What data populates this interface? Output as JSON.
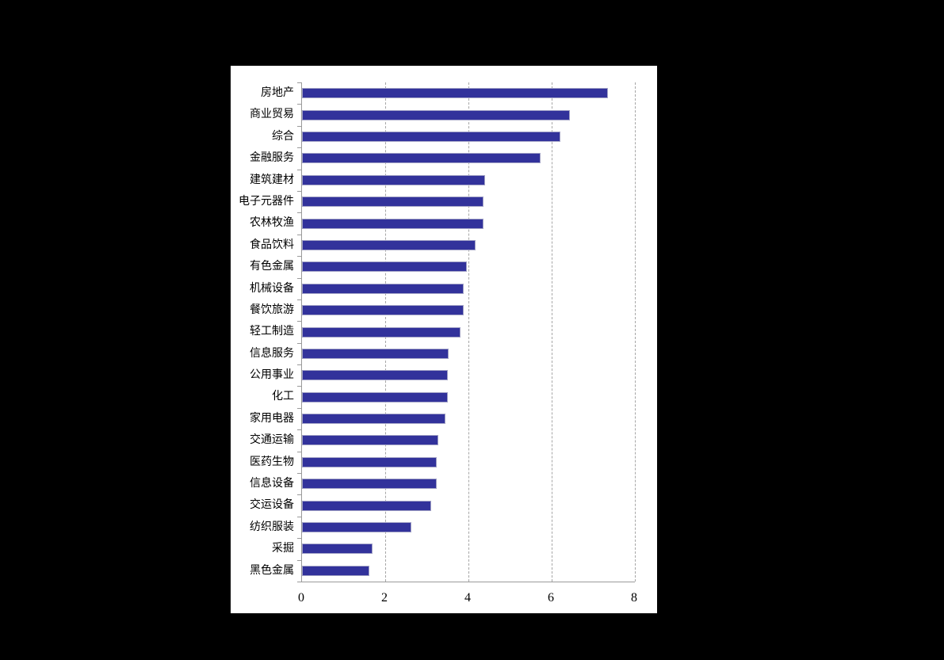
{
  "page": {
    "background_color": "#000000"
  },
  "panel": {
    "background_color": "#ffffff"
  },
  "chart_data": {
    "type": "bar",
    "orientation": "horizontal",
    "title": "",
    "xlabel": "",
    "ylabel": "",
    "legend": "none",
    "categories": [
      "房地产",
      "商业贸易",
      "综合",
      "金融服务",
      "建筑建材",
      "电子元器件",
      "农林牧渔",
      "食品饮料",
      "有色金属",
      "机械设备",
      "餐饮旅游",
      "轻工制造",
      "信息服务",
      "公用事业",
      "化工",
      "家用电器",
      "交通运输",
      "医药生物",
      "信息设备",
      "交运设备",
      "纺织服装",
      "采掘",
      "黑色金属"
    ],
    "values": [
      7.35,
      6.43,
      6.21,
      5.73,
      4.4,
      4.36,
      4.36,
      4.17,
      3.96,
      3.89,
      3.89,
      3.8,
      3.53,
      3.5,
      3.5,
      3.45,
      3.28,
      3.24,
      3.24,
      3.1,
      2.62,
      1.7,
      1.62
    ],
    "xlim": [
      0,
      8
    ],
    "x_tick_labels": [
      "0",
      "2",
      "4",
      "6",
      "8"
    ],
    "x_tick_values": [
      0,
      2,
      4,
      6,
      8
    ],
    "gridlines_dashed_at": [
      2,
      4,
      6,
      8
    ],
    "colors": {
      "bar_fill": "#32329b",
      "bar_border": "#a3a3c6",
      "axis_line": "#9a9a9a",
      "gridline": "#a6a6a6",
      "label_text": "#000000"
    }
  }
}
